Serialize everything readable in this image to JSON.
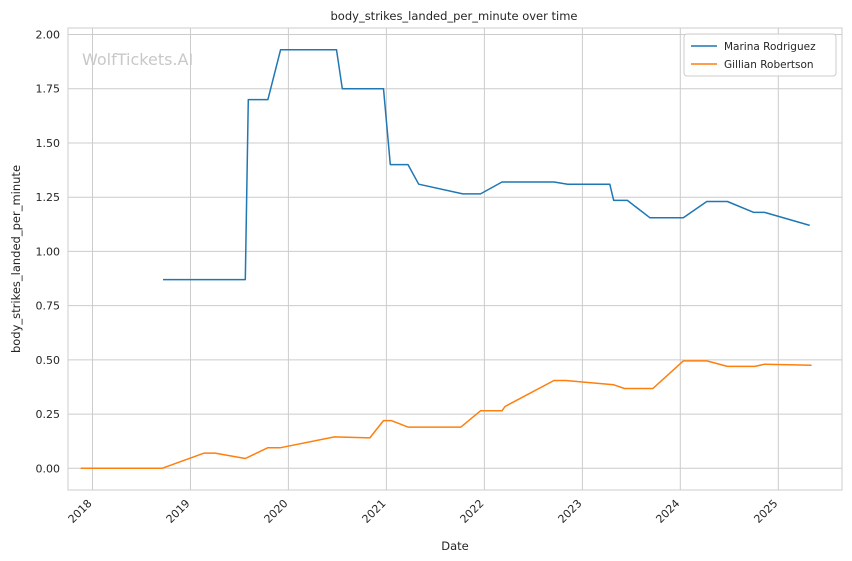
{
  "chart_data": {
    "type": "line",
    "title": "body_strikes_landed_per_minute over time",
    "xlabel": "Date",
    "ylabel": "body_strikes_landed_per_minute",
    "watermark": "WolfTickets.AI",
    "xlim": [
      2017.75,
      2025.65
    ],
    "ylim": [
      -0.1,
      2.03
    ],
    "x_ticks": [
      2018,
      2019,
      2020,
      2021,
      2022,
      2023,
      2024,
      2025
    ],
    "x_tick_labels": [
      "2018",
      "2019",
      "2020",
      "2021",
      "2022",
      "2023",
      "2024",
      "2025"
    ],
    "y_ticks": [
      0,
      0.25,
      0.5,
      0.75,
      1.0,
      1.25,
      1.5,
      1.75,
      2.0
    ],
    "y_tick_labels": [
      "0.00",
      "0.25",
      "0.50",
      "0.75",
      "1.00",
      "1.25",
      "1.50",
      "1.75",
      "2.00"
    ],
    "grid": true,
    "legend_position": "top-right",
    "series": [
      {
        "name": "Marina Rodriguez",
        "color": "#1f77b4",
        "points": [
          [
            2018.72,
            0.87
          ],
          [
            2019.56,
            0.87
          ],
          [
            2019.59,
            1.7
          ],
          [
            2019.79,
            1.7
          ],
          [
            2019.92,
            1.93
          ],
          [
            2020.49,
            1.93
          ],
          [
            2020.55,
            1.75
          ],
          [
            2020.97,
            1.75
          ],
          [
            2021.04,
            1.4
          ],
          [
            2021.22,
            1.4
          ],
          [
            2021.33,
            1.31
          ],
          [
            2021.78,
            1.265
          ],
          [
            2021.96,
            1.265
          ],
          [
            2022.18,
            1.32
          ],
          [
            2022.71,
            1.32
          ],
          [
            2022.85,
            1.31
          ],
          [
            2023.28,
            1.31
          ],
          [
            2023.32,
            1.235
          ],
          [
            2023.46,
            1.235
          ],
          [
            2023.69,
            1.155
          ],
          [
            2024.03,
            1.155
          ],
          [
            2024.27,
            1.23
          ],
          [
            2024.48,
            1.23
          ],
          [
            2024.75,
            1.18
          ],
          [
            2024.86,
            1.18
          ],
          [
            2025.32,
            1.12
          ]
        ]
      },
      {
        "name": "Gillian Robertson",
        "color": "#ff7f0e",
        "points": [
          [
            2017.88,
            0.0
          ],
          [
            2018.71,
            0.0
          ],
          [
            2019.14,
            0.07
          ],
          [
            2019.25,
            0.07
          ],
          [
            2019.56,
            0.045
          ],
          [
            2019.79,
            0.095
          ],
          [
            2019.92,
            0.095
          ],
          [
            2020.47,
            0.145
          ],
          [
            2020.83,
            0.14
          ],
          [
            2020.97,
            0.22
          ],
          [
            2021.05,
            0.22
          ],
          [
            2021.22,
            0.19
          ],
          [
            2021.76,
            0.19
          ],
          [
            2021.96,
            0.265
          ],
          [
            2022.18,
            0.265
          ],
          [
            2022.21,
            0.285
          ],
          [
            2022.71,
            0.405
          ],
          [
            2022.83,
            0.405
          ],
          [
            2023.32,
            0.385
          ],
          [
            2023.43,
            0.368
          ],
          [
            2023.72,
            0.368
          ],
          [
            2024.03,
            0.495
          ],
          [
            2024.27,
            0.495
          ],
          [
            2024.48,
            0.47
          ],
          [
            2024.76,
            0.47
          ],
          [
            2024.86,
            0.48
          ],
          [
            2025.34,
            0.475
          ]
        ]
      }
    ]
  }
}
